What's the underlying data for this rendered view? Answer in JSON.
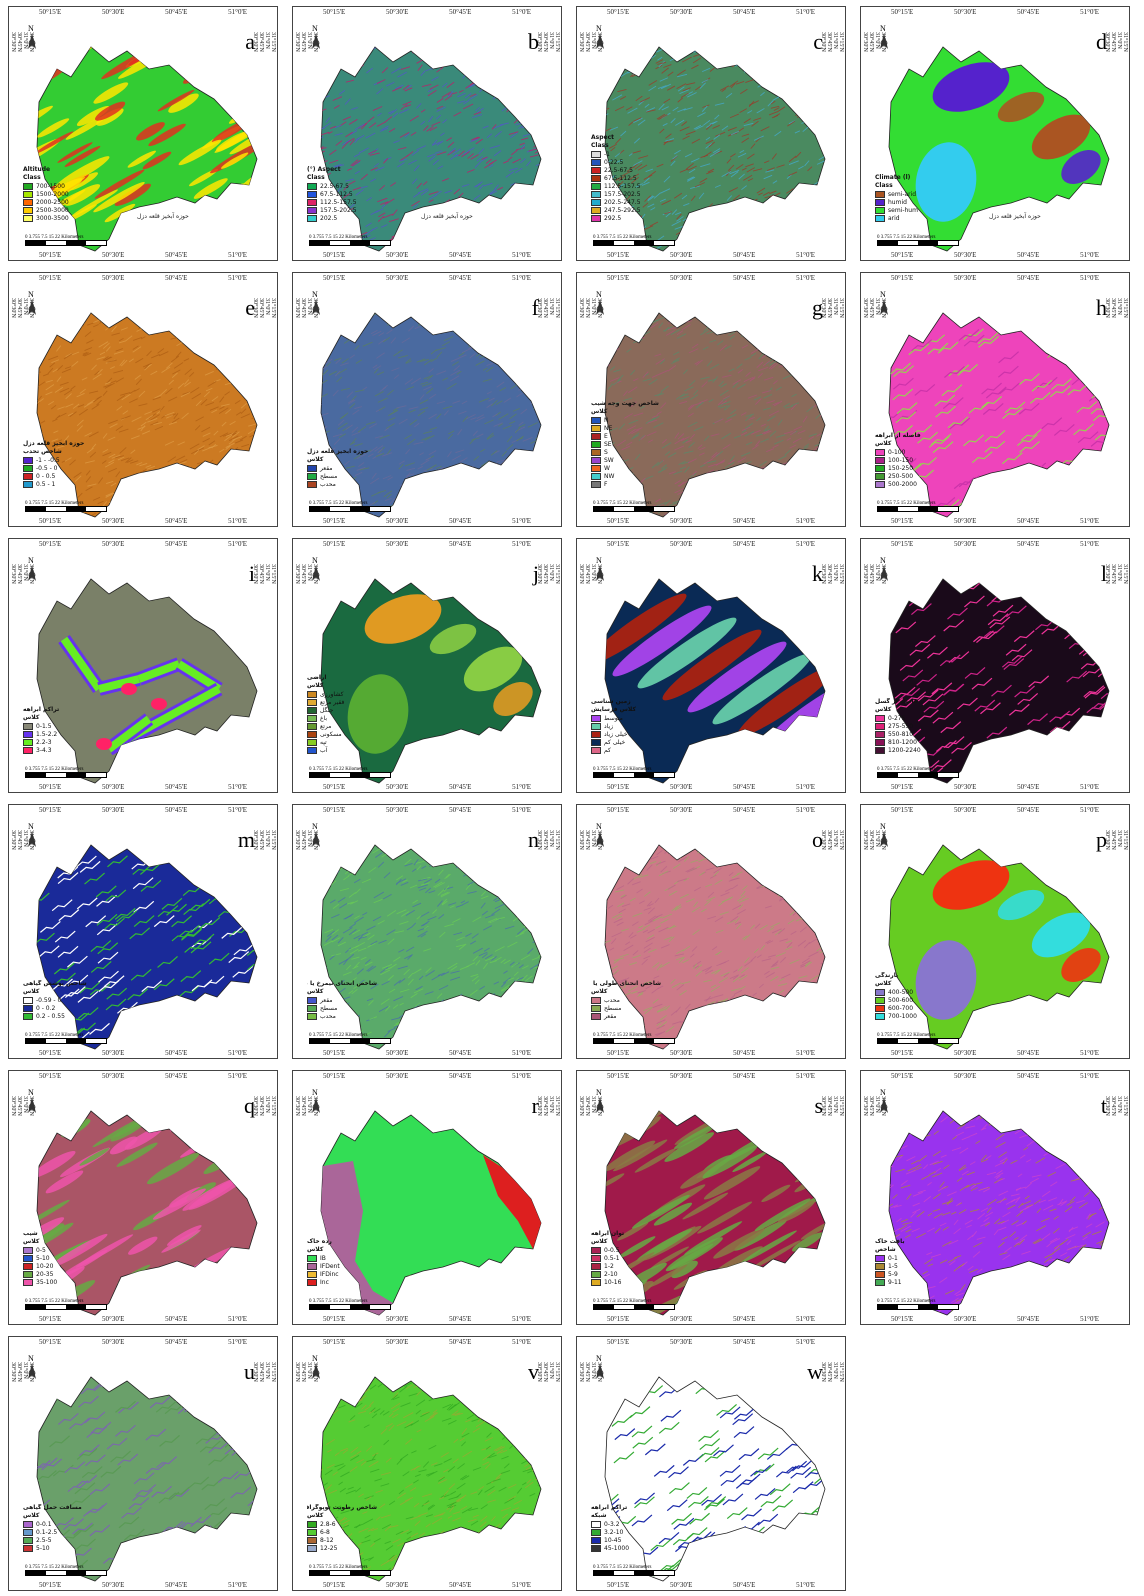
{
  "figure": {
    "coordinate_labels": {
      "lon": [
        "50°15'E",
        "50°30'E",
        "50°45'E",
        "51°0'E"
      ],
      "lat": [
        "31°15'N",
        "31°0'N",
        "30°45'N",
        "30°30'N"
      ],
      "scale": "0 3.755  7.5    15        22  Kilometers"
    },
    "panels": [
      {
        "letter": "a",
        "title": "Altitude",
        "subtitle": "Class",
        "basin": "حوزه آبخیز قلعه دزل",
        "fill": "#33cc33",
        "accent": "#ffe600",
        "pattern": "streaks",
        "accent2": "#e03020",
        "legend": [
          {
            "c": "#22aa22",
            "t": "700-1500"
          },
          {
            "c": "#a6e600",
            "t": "1500-2000"
          },
          {
            "c": "#ff6600",
            "t": "2000-2500"
          },
          {
            "c": "#ffcc00",
            "t": "2500-3000"
          },
          {
            "c": "#ffff66",
            "t": "3000-3500"
          }
        ]
      },
      {
        "letter": "b",
        "title": "Aspect (°)",
        "subtitle": "Class",
        "basin": "حوزه آبخیز قلعه دزل",
        "fill": "#3a8a7a",
        "accent": "#c21b6a",
        "pattern": "noise",
        "accent2": "#5555cc",
        "legend": [
          {
            "c": "#11aa55",
            "t": "22.5-67.5"
          },
          {
            "c": "#2255dd",
            "t": "67.5-112.5"
          },
          {
            "c": "#dd2266",
            "t": "112.5-157.5"
          },
          {
            "c": "#8833cc",
            "t": "157.5-202.5"
          },
          {
            "c": "#33cccc",
            "t": "202.5"
          }
        ]
      },
      {
        "letter": "c",
        "title": "Aspect",
        "subtitle": "Class",
        "basin": "",
        "fill": "#4a8a60",
        "accent": "#9a3a2a",
        "pattern": "noise",
        "accent2": "#44aacc",
        "legend": [
          {
            "c": "#dddddd",
            "t": "-1"
          },
          {
            "c": "#2255bb",
            "t": "0-22.5"
          },
          {
            "c": "#cc2222",
            "t": "22.5-67.5"
          },
          {
            "c": "#aa3311",
            "t": "67.5-112.5"
          },
          {
            "c": "#22aa44",
            "t": "112.5-157.5"
          },
          {
            "c": "#44bbcc",
            "t": "157.5-202.5"
          },
          {
            "c": "#22aacc",
            "t": "202.5-247.5"
          },
          {
            "c": "#ddaa22",
            "t": "247.5-292.5"
          },
          {
            "c": "#dd33aa",
            "t": "292.5"
          }
        ]
      },
      {
        "letter": "d",
        "title": "Climate (l)",
        "subtitle": "Class",
        "basin": "حوزه آبخیز قلعه دزل",
        "fill": "#33dd33",
        "accent": "#5522cc",
        "pattern": "blobs",
        "accent2": "#aa5522",
        "accent3": "#33ccee",
        "legend": [
          {
            "c": "#aa5522",
            "t": "semi-arid"
          },
          {
            "c": "#5522cc",
            "t": "humid"
          },
          {
            "c": "#33dd33",
            "t": "semi-hum"
          },
          {
            "c": "#33ccee",
            "t": "arid"
          }
        ]
      },
      {
        "letter": "e",
        "title": "حوزه آبخیز قلعه دزل",
        "subtitle": "شاخص تحدب",
        "basin": "",
        "fill": "#cc7a22",
        "accent": "#dd9a44",
        "pattern": "noise",
        "accent2": "#b06015",
        "legend": [
          {
            "c": "#5522cc",
            "t": "-1 - -0.5"
          },
          {
            "c": "#22aa22",
            "t": "-0.5 - 0"
          },
          {
            "c": "#cc2222",
            "t": "0 - 0.5"
          },
          {
            "c": "#2299cc",
            "t": "0.5 - 1"
          }
        ]
      },
      {
        "letter": "f",
        "title": "حوزه آبخیز قلعه دزل",
        "subtitle": "کلاس",
        "basin": "",
        "fill": "#4a6aa0",
        "accent": "#5a8060",
        "pattern": "noise",
        "accent2": "#6a6a9a",
        "legend": [
          {
            "c": "#2244aa",
            "t": "مقعر"
          },
          {
            "c": "#22aa44",
            "t": "مسطح"
          },
          {
            "c": "#aa4422",
            "t": "محدب"
          }
        ]
      },
      {
        "letter": "g",
        "title": "شاخص جهت وجه شیب",
        "subtitle": "کلاس",
        "basin": "",
        "fill": "#8a6a5a",
        "accent": "#5a8a6a",
        "pattern": "noise",
        "accent2": "#aa5577",
        "legend": [
          {
            "c": "#2255bb",
            "t": "N"
          },
          {
            "c": "#ddaa22",
            "t": "NE"
          },
          {
            "c": "#aa2222",
            "t": "E"
          },
          {
            "c": "#22aa22",
            "t": "SE"
          },
          {
            "c": "#aa6622",
            "t": "S"
          },
          {
            "c": "#9944cc",
            "t": "SW"
          },
          {
            "c": "#ee6622",
            "t": "W"
          },
          {
            "c": "#44cccc",
            "t": "NW"
          },
          {
            "c": "#777777",
            "t": "F"
          }
        ]
      },
      {
        "letter": "h",
        "title": "فاصله از آبراهه",
        "subtitle": "کلاس",
        "basin": "",
        "fill": "#ee44bb",
        "accent": "#9acc55",
        "pattern": "veins",
        "accent2": "#cc33aa",
        "legend": [
          {
            "c": "#ee44bb",
            "t": "0-100"
          },
          {
            "c": "#aa2288",
            "t": "100-150"
          },
          {
            "c": "#22aa22",
            "t": "150-250"
          },
          {
            "c": "#449933",
            "t": "250-500"
          },
          {
            "c": "#aa77cc",
            "t": "500-2000"
          }
        ]
      },
      {
        "letter": "i",
        "title": "تراکم آبراهه",
        "subtitle": "کلاس",
        "basin": "",
        "fill": "#7a8068",
        "accent": "#66ee22",
        "pattern": "network",
        "accent2": "#6633ee",
        "accent3": "#ff2266",
        "legend": [
          {
            "c": "#888877",
            "t": "0-1.5"
          },
          {
            "c": "#6633ee",
            "t": "1.5-2.2"
          },
          {
            "c": "#66ee22",
            "t": "2.2-3"
          },
          {
            "c": "#ff2266",
            "t": "3-4.3"
          }
        ]
      },
      {
        "letter": "j",
        "title": "اراضی",
        "subtitle": "کلاس",
        "basin": "",
        "fill": "#1a6a40",
        "accent": "#e09a22",
        "pattern": "blobs",
        "accent2": "#88cc44",
        "accent3": "#55aa33",
        "legend": [
          {
            "c": "#cc8822",
            "t": "کشاورزی"
          },
          {
            "c": "#e0aa33",
            "t": "فقیر مرتع"
          },
          {
            "c": "#226633",
            "t": "جنگل"
          },
          {
            "c": "#77bb55",
            "t": "باغ"
          },
          {
            "c": "#669933",
            "t": "مرتع"
          },
          {
            "c": "#aa4411",
            "t": "مسکونی"
          },
          {
            "c": "#88cc22",
            "t": "تپه"
          },
          {
            "c": "#2255cc",
            "t": "آب"
          }
        ]
      },
      {
        "letter": "k",
        "title": "زمین شناسی",
        "subtitle": "کلاس فرسایش",
        "basin": "",
        "fill": "#0a2a55",
        "accent": "#aa2211",
        "pattern": "bands",
        "accent2": "#aa44ee",
        "accent3": "#66ccaa",
        "legend": [
          {
            "c": "#aa44ee",
            "t": "متوسط"
          },
          {
            "c": "#66ccaa",
            "t": "زیاد"
          },
          {
            "c": "#aa2211",
            "t": "خیلی زیاد"
          },
          {
            "c": "#0a2a55",
            "t": "خیلی کم"
          },
          {
            "c": "#dd6688",
            "t": "کم"
          }
        ]
      },
      {
        "letter": "l",
        "title": "فاصله از گسل",
        "subtitle": "کلاس",
        "basin": "",
        "fill": "#1a0a1a",
        "accent": "#ee3399",
        "pattern": "veins",
        "accent2": "#cc2288",
        "legend": [
          {
            "c": "#ee3399",
            "t": "0-275"
          },
          {
            "c": "#dd2277",
            "t": "275-550"
          },
          {
            "c": "#aa2266",
            "t": "550-810"
          },
          {
            "c": "#881155",
            "t": "810-1200"
          },
          {
            "c": "#441133",
            "t": "1200-2240"
          }
        ]
      },
      {
        "letter": "m",
        "title": "شاخص پوشش گیاهی",
        "subtitle": "کلاس",
        "basin": "",
        "fill": "#1a2a99",
        "accent": "#33bb33",
        "pattern": "veins",
        "accent2": "#ffffff",
        "legend": [
          {
            "c": "#ffffff",
            "t": "-0.59 - 0"
          },
          {
            "c": "#1a2a99",
            "t": "0 - 0.2"
          },
          {
            "c": "#33bb33",
            "t": "0.2 - 0.55"
          }
        ]
      },
      {
        "letter": "n",
        "title": "شاخص انحنای نیمرخ یا عرضی",
        "subtitle": "کلاس",
        "basin": "",
        "fill": "#5aaa6a",
        "accent": "#4a70aa",
        "pattern": "noise",
        "accent2": "#6acc55",
        "legend": [
          {
            "c": "#4455cc",
            "t": "مقعر"
          },
          {
            "c": "#55aa55",
            "t": "مسطح"
          },
          {
            "c": "#77bb44",
            "t": "محدب"
          }
        ]
      },
      {
        "letter": "o",
        "title": "شاخص انحنای طولی یا دامنه",
        "subtitle": "کلاس",
        "basin": "",
        "fill": "#cc7a88",
        "accent": "#9aaa66",
        "pattern": "noise",
        "accent2": "#bb6688",
        "legend": [
          {
            "c": "#cc7788",
            "t": "محدب"
          },
          {
            "c": "#88aa55",
            "t": "مسطح"
          },
          {
            "c": "#aa5577",
            "t": "مقعر"
          }
        ]
      },
      {
        "letter": "p",
        "title": "بارندگی",
        "subtitle": "کلاس",
        "basin": "",
        "fill": "#66cc22",
        "accent": "#ee3311",
        "pattern": "blobs",
        "accent2": "#33dddd",
        "accent3": "#8877cc",
        "legend": [
          {
            "c": "#8877cc",
            "t": "400-500"
          },
          {
            "c": "#66cc22",
            "t": "500-600"
          },
          {
            "c": "#ee3311",
            "t": "600-700"
          },
          {
            "c": "#33dddd",
            "t": "700-1000"
          }
        ]
      },
      {
        "letter": "q",
        "title": "شیب",
        "subtitle": "کلاس",
        "basin": "",
        "fill": "#aa5566",
        "accent": "#ee55aa",
        "pattern": "streaks",
        "accent2": "#66aa44",
        "legend": [
          {
            "c": "#aa77cc",
            "t": "0-5"
          },
          {
            "c": "#2255cc",
            "t": "5-10"
          },
          {
            "c": "#cc2222",
            "t": "10-20"
          },
          {
            "c": "#66aa44",
            "t": "20-35"
          },
          {
            "c": "#ee55aa",
            "t": "35-100"
          }
        ]
      },
      {
        "letter": "r",
        "title": "رده خاک",
        "subtitle": "کلاس",
        "basin": "",
        "fill": "#33dd55",
        "accent": "#aa6699",
        "pattern": "soil",
        "accent2": "#dd1f1f",
        "accent3": "#eebb33",
        "legend": [
          {
            "c": "#33dd55",
            "t": "IB"
          },
          {
            "c": "#aa6699",
            "t": "IFDent"
          },
          {
            "c": "#eebb33",
            "t": "IFDinc"
          },
          {
            "c": "#dd1f1f",
            "t": "Inc"
          }
        ]
      },
      {
        "letter": "s",
        "title": "توان آبراهه",
        "subtitle": "کلاس",
        "basin": "",
        "fill": "#a01a4a",
        "accent": "#8a7a44",
        "pattern": "streaks",
        "accent2": "#66aa44",
        "legend": [
          {
            "c": "#aa2255",
            "t": "0-0.5"
          },
          {
            "c": "#cc3366",
            "t": "0.5-1"
          },
          {
            "c": "#aa2244",
            "t": "1-2"
          },
          {
            "c": "#66aa44",
            "t": "2-10"
          },
          {
            "c": "#ddaa22",
            "t": "10-16"
          }
        ]
      },
      {
        "letter": "t",
        "title": "بافت خاک",
        "subtitle": "شاخص",
        "basin": "",
        "fill": "#9933ee",
        "accent": "#aa8833",
        "pattern": "noise",
        "accent2": "#cc44cc",
        "legend": [
          {
            "c": "#9933ee",
            "t": "0-1"
          },
          {
            "c": "#aa8833",
            "t": "1-5"
          },
          {
            "c": "#cc5522",
            "t": "5-9"
          },
          {
            "c": "#44aa55",
            "t": "9-11"
          }
        ]
      },
      {
        "letter": "u",
        "title": "مسافت حمل گیاهی",
        "subtitle": "کلاس",
        "basin": "",
        "fill": "#6aa06a",
        "accent": "#7a6aaa",
        "pattern": "veins",
        "accent2": "#5a9a55",
        "legend": [
          {
            "c": "#aa66cc",
            "t": "0-0.1"
          },
          {
            "c": "#6699cc",
            "t": "0.1-2.5"
          },
          {
            "c": "#55aa55",
            "t": "2.5-5"
          },
          {
            "c": "#cc3333",
            "t": "5-10"
          }
        ]
      },
      {
        "letter": "v",
        "title": "شاخص رطوبت توپوگرافی",
        "subtitle": "کلاس",
        "basin": "",
        "fill": "#55cc33",
        "accent": "#33aa22",
        "pattern": "noise",
        "accent2": "#99aa33",
        "legend": [
          {
            "c": "#33aa22",
            "t": "2.8-6"
          },
          {
            "c": "#55cc33",
            "t": "6-8"
          },
          {
            "c": "#aa6633",
            "t": "8-12"
          },
          {
            "c": "#99aacc",
            "t": "12-25"
          }
        ]
      },
      {
        "letter": "w",
        "title": "تراکم آبراهه",
        "subtitle": "شبکه",
        "basin": "",
        "fill": "#ffffff",
        "accent": "#1a2aaa",
        "pattern": "veins",
        "accent2": "#33aa33",
        "legend": [
          {
            "c": "#ffffff",
            "t": "0-3.2"
          },
          {
            "c": "#33aa33",
            "t": "3.2-10"
          },
          {
            "c": "#1a2aaa",
            "t": "10-45"
          },
          {
            "c": "#333333",
            "t": "45-1000"
          }
        ]
      }
    ]
  }
}
